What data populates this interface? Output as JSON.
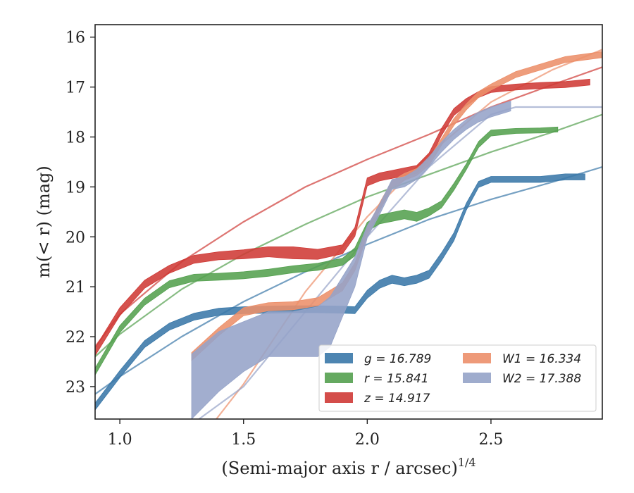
{
  "chart_data": {
    "type": "line",
    "title": "",
    "xlabel": "(Semi-major axis r / arcsec)^1/4",
    "ylabel": "m(< r) (mag)",
    "xlim": [
      0.9,
      2.95
    ],
    "ylim": [
      23.65,
      15.75
    ],
    "y_inverted": true,
    "grid": false,
    "legend_position": "lower-right",
    "legend_columns": 2,
    "x_ticks": [
      "1.0",
      "1.5",
      "2.0",
      "2.5"
    ],
    "x_tick_values": [
      1.0,
      1.5,
      2.0,
      2.5
    ],
    "y_ticks": [
      "16",
      "17",
      "18",
      "19",
      "20",
      "21",
      "22",
      "23"
    ],
    "y_tick_values": [
      16,
      17,
      18,
      19,
      20,
      21,
      22,
      23
    ],
    "series": [
      {
        "name": "g = 16.789",
        "band": "g",
        "total_mag": "16.789",
        "color": "#3a78a8",
        "x": [
          0.9,
          1.0,
          1.1,
          1.2,
          1.3,
          1.4,
          1.5,
          1.6,
          1.7,
          1.8,
          1.9,
          1.95,
          2.0,
          2.05,
          2.1,
          2.15,
          2.2,
          2.25,
          2.3,
          2.35,
          2.4,
          2.45,
          2.5,
          2.6,
          2.7,
          2.8,
          2.88
        ],
        "y": [
          23.4,
          22.75,
          22.15,
          21.8,
          21.6,
          21.5,
          21.47,
          21.46,
          21.45,
          21.45,
          21.46,
          21.47,
          21.15,
          20.95,
          20.85,
          20.9,
          20.85,
          20.75,
          20.4,
          20.0,
          19.4,
          18.95,
          18.85,
          18.85,
          18.85,
          18.8,
          18.8
        ],
        "band_halfwidth": [
          0.07,
          0.07,
          0.07,
          0.07,
          0.07,
          0.07,
          0.07,
          0.07,
          0.07,
          0.07,
          0.07,
          0.07,
          0.08,
          0.08,
          0.08,
          0.08,
          0.08,
          0.08,
          0.08,
          0.08,
          0.07,
          0.06,
          0.06,
          0.06,
          0.06,
          0.06,
          0.06
        ],
        "fit": {
          "x": [
            0.9,
            1.0,
            1.25,
            1.5,
            1.75,
            2.0,
            2.25,
            2.5,
            2.75,
            2.95
          ],
          "y": [
            23.15,
            22.8,
            22.0,
            21.3,
            20.7,
            20.15,
            19.65,
            19.25,
            18.9,
            18.6
          ]
        }
      },
      {
        "name": "r = 15.841",
        "band": "r",
        "total_mag": "15.841",
        "color": "#54a04f",
        "x": [
          0.9,
          1.0,
          1.1,
          1.2,
          1.3,
          1.4,
          1.5,
          1.6,
          1.7,
          1.8,
          1.9,
          1.95,
          2.0,
          2.05,
          2.1,
          2.15,
          2.2,
          2.25,
          2.3,
          2.35,
          2.4,
          2.45,
          2.5,
          2.6,
          2.7,
          2.77
        ],
        "y": [
          22.7,
          21.85,
          21.3,
          20.95,
          20.82,
          20.8,
          20.77,
          20.72,
          20.65,
          20.6,
          20.5,
          20.3,
          19.8,
          19.65,
          19.6,
          19.55,
          19.6,
          19.5,
          19.35,
          19.0,
          18.6,
          18.15,
          17.92,
          17.88,
          17.87,
          17.85
        ],
        "band_halfwidth": [
          0.07,
          0.07,
          0.07,
          0.07,
          0.07,
          0.07,
          0.07,
          0.07,
          0.07,
          0.07,
          0.07,
          0.08,
          0.09,
          0.09,
          0.09,
          0.09,
          0.09,
          0.08,
          0.07,
          0.07,
          0.06,
          0.06,
          0.06,
          0.05,
          0.05,
          0.05
        ],
        "fit": {
          "x": [
            0.9,
            1.0,
            1.25,
            1.5,
            1.75,
            2.0,
            2.25,
            2.5,
            2.75,
            2.95
          ],
          "y": [
            22.4,
            21.95,
            21.05,
            20.35,
            19.75,
            19.2,
            18.75,
            18.3,
            17.9,
            17.55
          ]
        }
      },
      {
        "name": "z = 14.917",
        "band": "z",
        "total_mag": "14.917",
        "color": "#cf3a36",
        "x": [
          0.9,
          1.0,
          1.1,
          1.2,
          1.3,
          1.4,
          1.5,
          1.6,
          1.7,
          1.8,
          1.9,
          1.95,
          2.0,
          2.05,
          2.1,
          2.15,
          2.2,
          2.25,
          2.3,
          2.35,
          2.4,
          2.45,
          2.5,
          2.6,
          2.7,
          2.8,
          2.9
        ],
        "y": [
          22.3,
          21.5,
          20.95,
          20.65,
          20.45,
          20.38,
          20.35,
          20.3,
          20.32,
          20.35,
          20.25,
          19.9,
          18.9,
          18.8,
          18.75,
          18.7,
          18.65,
          18.4,
          17.9,
          17.5,
          17.3,
          17.15,
          17.05,
          17.0,
          16.97,
          16.95,
          16.9
        ],
        "band_halfwidth": [
          0.08,
          0.08,
          0.08,
          0.08,
          0.08,
          0.08,
          0.09,
          0.1,
          0.12,
          0.1,
          0.09,
          0.09,
          0.08,
          0.08,
          0.08,
          0.08,
          0.08,
          0.08,
          0.07,
          0.07,
          0.07,
          0.06,
          0.06,
          0.06,
          0.06,
          0.06,
          0.06
        ],
        "fit": {
          "x": [
            0.9,
            1.0,
            1.25,
            1.5,
            1.75,
            2.0,
            2.25,
            2.5,
            2.75,
            2.95
          ],
          "y": [
            22.2,
            21.55,
            20.5,
            19.7,
            19.0,
            18.45,
            17.95,
            17.4,
            16.95,
            16.6
          ]
        }
      },
      {
        "name": "W1 = 16.334",
        "band": "W1",
        "total_mag": "16.334",
        "color": "#ec8f6a",
        "x": [
          1.29,
          1.4,
          1.5,
          1.6,
          1.7,
          1.8,
          1.9,
          1.95,
          2.0,
          2.05,
          2.1,
          2.15,
          2.2,
          2.25,
          2.3,
          2.35,
          2.4,
          2.45,
          2.5,
          2.6,
          2.7,
          2.8,
          2.95
        ],
        "y": [
          22.4,
          21.9,
          21.5,
          21.4,
          21.38,
          21.3,
          21.0,
          20.6,
          19.9,
          19.4,
          18.95,
          18.8,
          18.7,
          18.5,
          18.1,
          17.7,
          17.4,
          17.15,
          17.0,
          16.75,
          16.6,
          16.45,
          16.35
        ],
        "band_halfwidth": [
          0.08,
          0.08,
          0.08,
          0.08,
          0.08,
          0.08,
          0.08,
          0.08,
          0.08,
          0.08,
          0.07,
          0.07,
          0.07,
          0.07,
          0.07,
          0.07,
          0.06,
          0.06,
          0.06,
          0.06,
          0.06,
          0.06,
          0.06
        ],
        "fit": {
          "x": [
            1.39,
            1.5,
            1.75,
            2.0,
            2.25,
            2.5,
            2.75,
            2.95
          ],
          "y": [
            23.65,
            22.95,
            21.1,
            19.6,
            18.35,
            17.3,
            16.65,
            16.25
          ]
        }
      },
      {
        "name": "W2 = 17.388",
        "band": "W2",
        "total_mag": "17.388",
        "color": "#95a3c8",
        "x": [
          1.29,
          1.4,
          1.5,
          1.6,
          1.7,
          1.8,
          1.85,
          1.9,
          1.95,
          2.0,
          2.05,
          2.1,
          2.15,
          2.2,
          2.25,
          2.3,
          2.35,
          2.4,
          2.45,
          2.5,
          2.58
        ],
        "y": [
          23.0,
          22.5,
          22.2,
          21.95,
          21.95,
          21.9,
          21.7,
          21.2,
          20.7,
          19.9,
          19.45,
          18.95,
          18.9,
          18.75,
          18.5,
          18.2,
          17.95,
          17.75,
          17.6,
          17.5,
          17.38
        ],
        "band_halfwidth": [
          0.65,
          0.6,
          0.5,
          0.45,
          0.45,
          0.5,
          0.5,
          0.4,
          0.3,
          0.12,
          0.1,
          0.1,
          0.1,
          0.1,
          0.1,
          0.1,
          0.1,
          0.1,
          0.1,
          0.1,
          0.1
        ],
        "fit": {
          "x": [
            1.32,
            1.5,
            1.75,
            2.0,
            2.25,
            2.5,
            2.6,
            2.95
          ],
          "y": [
            23.65,
            23.0,
            21.5,
            20.0,
            18.6,
            17.55,
            17.4,
            17.4
          ]
        }
      }
    ]
  }
}
